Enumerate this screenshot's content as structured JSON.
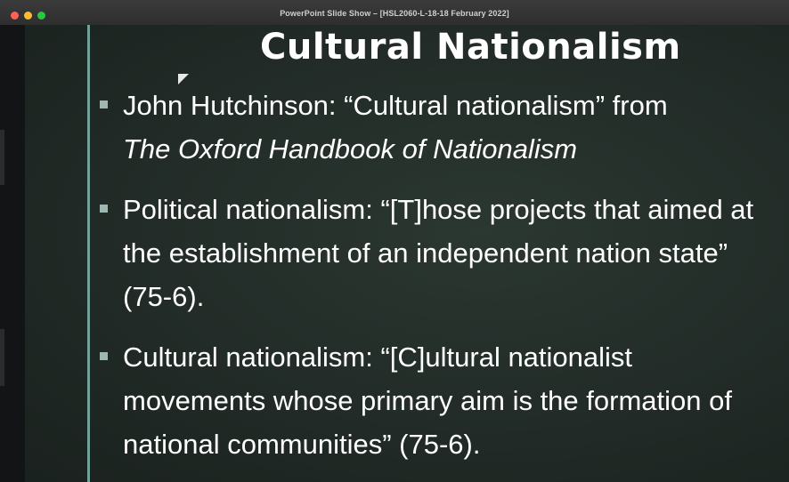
{
  "window": {
    "title": "PowerPoint Slide Show – [HSL2060-L-18-18 February 2022]"
  },
  "slide": {
    "title": "Cultural Nationalism",
    "bullets": [
      {
        "text": "John Hutchinson: “Cultural nationalism” from",
        "italic_text": "The Oxford Handbook of Nationalism"
      },
      {
        "text": "Political nationalism: “[T]hose projects that aimed at the establishment of an independent nation state” (75-6)."
      },
      {
        "text": "Cultural nationalism: “[C]ultural nationalist movements whose primary aim is the formation of national communities” (75-6)."
      }
    ]
  },
  "colors": {
    "accent_line": "#7fb7b0",
    "bullet_marker": "#9fb6b1",
    "slide_background": "#222b27"
  },
  "icons": {
    "cursor": "mouse-pointer-icon"
  }
}
